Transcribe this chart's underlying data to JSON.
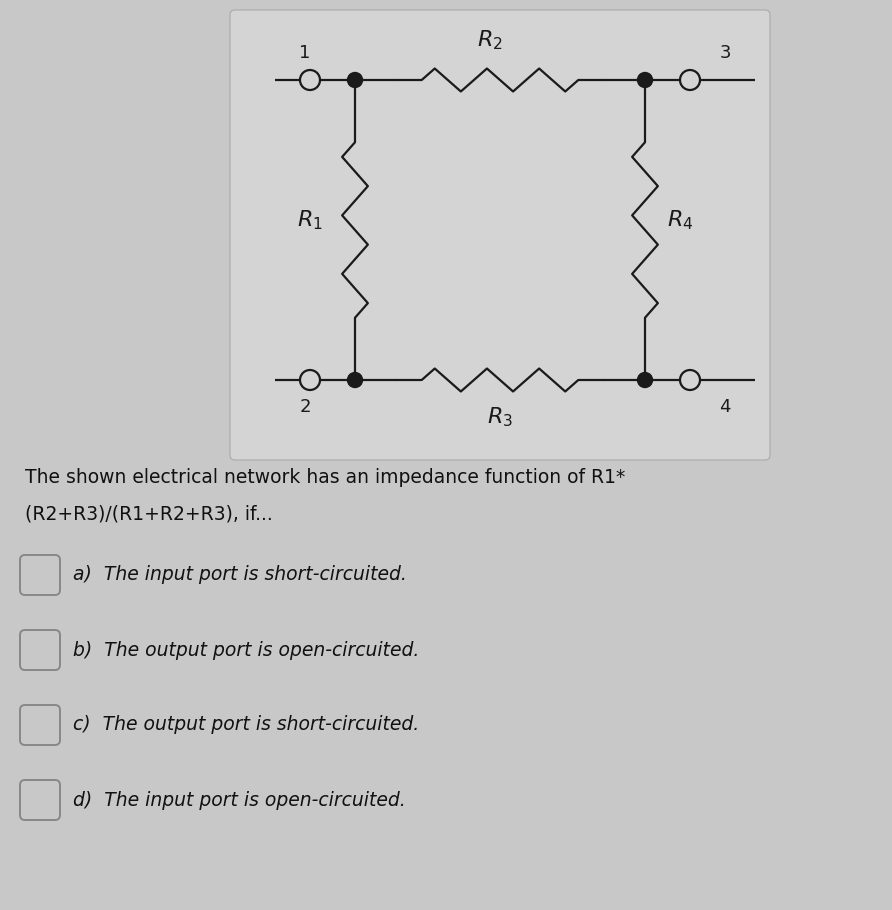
{
  "page_bg": "#c8c8c8",
  "circuit_box_bg": "#d4d4d4",
  "circuit_box_border": "#aaaaaa",
  "wire_color": "#1a1a1a",
  "resistor_color": "#1a1a1a",
  "label_color": "#1a1a1a",
  "question_color": "#111111",
  "option_color": "#111111",
  "checkbox_edge": "#888888",
  "checkbox_face": "#c8c8c8",
  "font_size_labels": 14,
  "font_size_question": 13.5,
  "font_size_options": 13.5,
  "question_text_line1": "The shown electrical network has an impedance function of R1*",
  "question_text_line2": "(R2+R3)/(R1+R2+R3), if...",
  "options": [
    "a)  The input port is short-circuited.",
    "b)  The output port is open-circuited.",
    "c)  The output port is short-circuited.",
    "d)  The input port is open-circuited."
  ]
}
